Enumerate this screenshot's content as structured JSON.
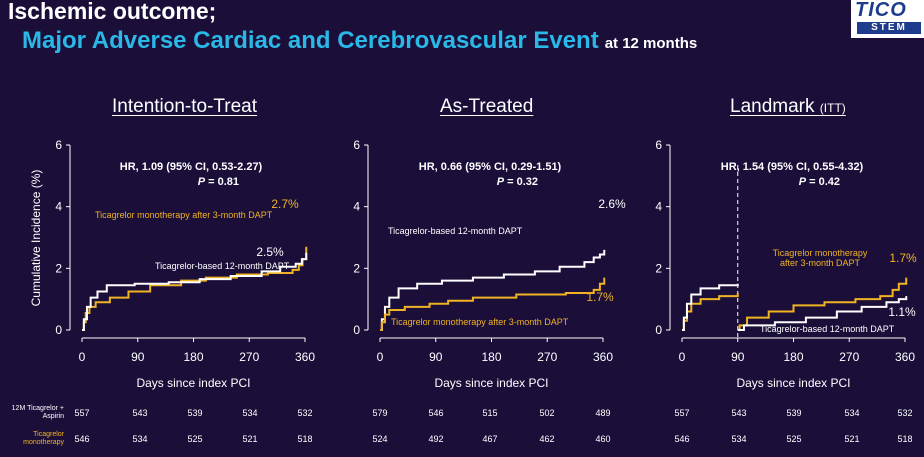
{
  "header": {
    "title_line1": "Ischemic outcome;",
    "title_line2": "Major Adverse Cardiac and Cerebrovascular Event",
    "title_suffix": "at 12 months",
    "logo_text_top": "TICO",
    "logo_text_bottom": "STEM"
  },
  "colors": {
    "accent": "#2ab8e6",
    "ticagrelor_mono": "#f0b323",
    "dapt12": "#ffffff",
    "background": "#1b0f3a"
  },
  "risk_table": {
    "row_labels": [
      "12M Ticagrelor + Aspirin",
      "Ticagrelor monotherapy"
    ]
  },
  "chart_data": [
    {
      "type": "line",
      "title": "Intention-to-Treat",
      "title_suffix": "",
      "xlabel": "Days since index PCI",
      "ylabel": "Cumulative Incidence (%)",
      "xticks": [
        0,
        90,
        180,
        270,
        360
      ],
      "yticks": [
        0,
        2,
        4,
        6
      ],
      "xlim": [
        0,
        370
      ],
      "ylim": [
        0,
        6
      ],
      "hr_text": "HR, 1.09 (95% CI, 0.53-2.27)",
      "p_label": "P",
      "p_value": " = 0.81",
      "landmark_day": null,
      "series": [
        {
          "name": "Ticagrelor monotherapy after 3-month DAPT",
          "color": "#f0b323",
          "end_label": "2.7%",
          "points": [
            [
              0,
              0
            ],
            [
              3,
              0.25
            ],
            [
              6,
              0.55
            ],
            [
              12,
              0.75
            ],
            [
              22,
              0.9
            ],
            [
              45,
              1.05
            ],
            [
              75,
              1.25
            ],
            [
              110,
              1.45
            ],
            [
              160,
              1.6
            ],
            [
              200,
              1.7
            ],
            [
              250,
              1.8
            ],
            [
              300,
              1.85
            ],
            [
              340,
              1.95
            ],
            [
              350,
              2.1
            ],
            [
              356,
              2.3
            ],
            [
              362,
              2.7
            ]
          ]
        },
        {
          "name": "Ticagrelor-based 12-month DAPT",
          "color": "#ffffff",
          "end_label": "2.5%",
          "points": [
            [
              0,
              0
            ],
            [
              3,
              0.35
            ],
            [
              8,
              0.75
            ],
            [
              14,
              1.05
            ],
            [
              25,
              1.25
            ],
            [
              40,
              1.45
            ],
            [
              85,
              1.5
            ],
            [
              140,
              1.55
            ],
            [
              190,
              1.65
            ],
            [
              240,
              1.75
            ],
            [
              290,
              1.9
            ],
            [
              320,
              2.05
            ],
            [
              345,
              2.15
            ],
            [
              355,
              2.3
            ],
            [
              362,
              2.5
            ]
          ]
        }
      ],
      "risk_counts": [
        [
          557,
          543,
          539,
          534,
          532
        ],
        [
          546,
          534,
          525,
          521,
          518
        ]
      ]
    },
    {
      "type": "line",
      "title": "As-Treated",
      "title_suffix": "",
      "xlabel": "Days since index PCI",
      "ylabel": "",
      "xticks": [
        0,
        90,
        180,
        270,
        360
      ],
      "yticks": [
        0,
        2,
        4,
        6
      ],
      "xlim": [
        0,
        370
      ],
      "ylim": [
        0,
        6
      ],
      "hr_text": "HR, 0.66 (95% CI, 0.29-1.51)",
      "p_label": "P",
      "p_value": " = 0.32",
      "landmark_day": null,
      "series": [
        {
          "name": "Ticagrelor-based 12-month DAPT",
          "color": "#ffffff",
          "end_label": "2.6%",
          "points": [
            [
              0,
              0
            ],
            [
              3,
              0.35
            ],
            [
              8,
              0.75
            ],
            [
              15,
              1.05
            ],
            [
              30,
              1.35
            ],
            [
              60,
              1.5
            ],
            [
              100,
              1.6
            ],
            [
              150,
              1.7
            ],
            [
              200,
              1.8
            ],
            [
              250,
              1.9
            ],
            [
              290,
              2.05
            ],
            [
              330,
              2.2
            ],
            [
              345,
              2.35
            ],
            [
              355,
              2.45
            ],
            [
              362,
              2.6
            ]
          ]
        },
        {
          "name": "Ticagrelor monotherapy after 3-month DAPT",
          "color": "#f0b323",
          "end_label": "1.7%",
          "points": [
            [
              0,
              0
            ],
            [
              3,
              0.25
            ],
            [
              8,
              0.5
            ],
            [
              15,
              0.65
            ],
            [
              40,
              0.75
            ],
            [
              80,
              0.85
            ],
            [
              110,
              0.95
            ],
            [
              150,
              1.05
            ],
            [
              220,
              1.15
            ],
            [
              300,
              1.2
            ],
            [
              345,
              1.3
            ],
            [
              355,
              1.5
            ],
            [
              362,
              1.7
            ]
          ]
        }
      ],
      "risk_counts": [
        [
          579,
          546,
          515,
          502,
          489
        ],
        [
          524,
          492,
          467,
          462,
          460
        ]
      ]
    },
    {
      "type": "line",
      "title": "Landmark",
      "title_suffix": "(ITT)",
      "xlabel": "Days since index PCI",
      "ylabel": "",
      "xticks": [
        0,
        90,
        180,
        270,
        360
      ],
      "yticks": [
        0,
        2,
        4,
        6
      ],
      "xlim": [
        0,
        370
      ],
      "ylim": [
        0,
        6
      ],
      "hr_text": "HR, 1.54 (95% CI, 0.55-4.32)",
      "p_label": "P",
      "p_value": " = 0.42",
      "landmark_day": 90,
      "series": [
        {
          "name": "Ticagrelor monotherapy after 3-month DAPT",
          "color": "#f0b323",
          "end_label": "1.7%",
          "segments": [
            [
              [
                0,
                0
              ],
              [
                3,
                0.3
              ],
              [
                8,
                0.6
              ],
              [
                15,
                0.85
              ],
              [
                30,
                1.0
              ],
              [
                60,
                1.1
              ],
              [
                90,
                1.2
              ]
            ],
            [
              [
                90,
                0
              ],
              [
                93,
                0.15
              ],
              [
                105,
                0.4
              ],
              [
                140,
                0.6
              ],
              [
                180,
                0.8
              ],
              [
                230,
                0.9
              ],
              [
                280,
                1.0
              ],
              [
                320,
                1.1
              ],
              [
                340,
                1.3
              ],
              [
                350,
                1.5
              ],
              [
                362,
                1.7
              ]
            ]
          ]
        },
        {
          "name": "Ticagrelor-based 12-month DAPT",
          "color": "#ffffff",
          "end_label": "1.1%",
          "segments": [
            [
              [
                0,
                0
              ],
              [
                3,
                0.4
              ],
              [
                8,
                0.85
              ],
              [
                15,
                1.15
              ],
              [
                30,
                1.35
              ],
              [
                60,
                1.45
              ],
              [
                90,
                1.5
              ]
            ],
            [
              [
                90,
                0
              ],
              [
                100,
                0.15
              ],
              [
                150,
                0.25
              ],
              [
                200,
                0.4
              ],
              [
                250,
                0.6
              ],
              [
                290,
                0.75
              ],
              [
                330,
                0.9
              ],
              [
                350,
                1.0
              ],
              [
                362,
                1.1
              ]
            ]
          ]
        }
      ],
      "risk_counts": [
        [
          557,
          543,
          539,
          534,
          532
        ],
        [
          546,
          534,
          525,
          521,
          518
        ]
      ]
    }
  ]
}
